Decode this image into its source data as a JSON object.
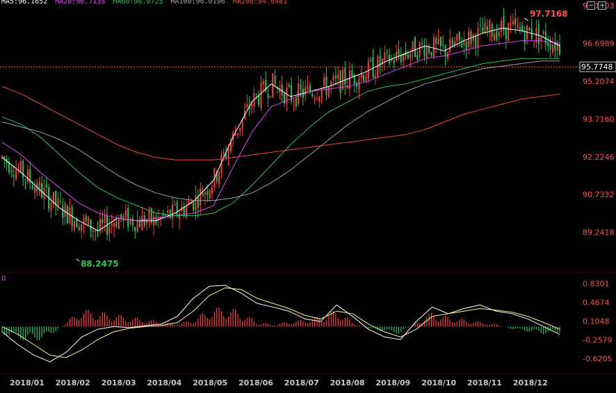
{
  "colors": {
    "bg": "#000000",
    "up": "#ff3b3b",
    "down": "#22c55e",
    "ma5": "#ffffff",
    "ma20": "#d946ef",
    "ma60": "#22c55e",
    "ma100": "#9ca3af",
    "ma200": "#ef4444",
    "axis_text": "#ff4d4d",
    "date_text": "#c9c9c9",
    "dif": "#ffffff",
    "dea": "#f5f5a0"
  },
  "legend": [
    {
      "text": "MA5:96.1652",
      "color": "#ffffff"
    },
    {
      "text": "MA20:96.7135",
      "color": "#d946ef"
    },
    {
      "text": "MA60:96.0725",
      "color": "#22c55e"
    },
    {
      "text": "MA100:96.0196",
      "color": "#9ca3af"
    },
    {
      "text": "MA200:94.6481",
      "color": "#ef4444"
    }
  ],
  "indicator_label": "0",
  "buttons": [
    {
      "name": "zoom-out-button",
      "icon": "minus-square-icon"
    },
    {
      "name": "zoom-in-button",
      "icon": "plus-square-icon"
    }
  ],
  "chart_data": [
    {
      "type": "candlestick",
      "y_ticks": [
        "98.1903",
        "96.6989",
        "95.2074",
        "93.7160",
        "92.2246",
        "90.7332",
        "89.2418"
      ],
      "ylim": [
        88.0,
        98.19
      ],
      "last_price": "95.7748",
      "high_annotation": "97.7168",
      "low_annotation": "88.2475",
      "x_ticks": [
        "2018/01",
        "2018/02",
        "2018/03",
        "2018/04",
        "2018/05",
        "2018/06",
        "2018/07",
        "2018/08",
        "2018/09",
        "2018/10",
        "2018/11",
        "2018/12"
      ],
      "series": [
        {
          "name": "MA5",
          "values": [
            92.2,
            91.6,
            90.9,
            90.2,
            89.7,
            89.3,
            89.8,
            89.7,
            89.7,
            90.0,
            90.5,
            91.3,
            93.0,
            94.4,
            95.1,
            94.6,
            94.8,
            95.0,
            95.3,
            95.6,
            96.0,
            96.3,
            96.6,
            96.4,
            96.8,
            97.1,
            97.3,
            97.2,
            97.0,
            96.6
          ]
        },
        {
          "name": "MA20",
          "values": [
            92.8,
            92.3,
            91.6,
            91.0,
            90.4,
            90.0,
            89.8,
            89.7,
            89.8,
            89.9,
            90.0,
            90.3,
            91.8,
            93.2,
            94.2,
            94.5,
            94.8,
            94.9,
            95.0,
            95.2,
            95.5,
            95.8,
            96.1,
            96.2,
            96.4,
            96.6,
            96.7,
            96.8,
            96.8,
            96.7
          ]
        },
        {
          "name": "MA60",
          "values": [
            93.8,
            93.5,
            93.0,
            92.3,
            91.6,
            91.0,
            90.6,
            90.3,
            90.0,
            89.9,
            89.9,
            90.0,
            90.4,
            91.1,
            91.9,
            92.7,
            93.4,
            94.0,
            94.4,
            94.8,
            95.0,
            95.1,
            95.3,
            95.5,
            95.7,
            95.9,
            96.0,
            96.1,
            96.1,
            96.1
          ]
        },
        {
          "name": "MA100",
          "values": [
            93.6,
            93.4,
            93.2,
            92.9,
            92.5,
            92.0,
            91.5,
            91.1,
            90.8,
            90.6,
            90.5,
            90.5,
            90.6,
            90.8,
            91.2,
            91.7,
            92.3,
            92.9,
            93.5,
            94.0,
            94.4,
            94.8,
            95.1,
            95.3,
            95.5,
            95.7,
            95.8,
            95.9,
            96.0,
            96.0
          ]
        },
        {
          "name": "MA200",
          "values": [
            95.0,
            94.7,
            94.3,
            93.9,
            93.5,
            93.1,
            92.7,
            92.4,
            92.2,
            92.1,
            92.1,
            92.1,
            92.2,
            92.3,
            92.4,
            92.5,
            92.6,
            92.7,
            92.8,
            92.9,
            93.0,
            93.1,
            93.3,
            93.6,
            93.9,
            94.1,
            94.3,
            94.5,
            94.6,
            94.7
          ]
        }
      ]
    },
    {
      "type": "macd",
      "y_ticks": [
        "0.8301",
        "0.4674",
        "0.1048",
        "-0.2579",
        "-0.6205"
      ],
      "ylim": [
        -0.8,
        1.0
      ],
      "bars": [
        -0.15,
        -0.25,
        -0.3,
        -0.2,
        0.1,
        0.35,
        0.3,
        0.25,
        0.2,
        0.15,
        0.1,
        0.05,
        0.15,
        0.35,
        0.4,
        0.3,
        0.1,
        0.05,
        0.1,
        0.15,
        0.2,
        0.35,
        0.1,
        -0.05,
        -0.1,
        -0.15,
        0.1,
        0.3,
        0.2,
        0.15,
        0.1,
        0.05,
        -0.05,
        -0.1,
        -0.15,
        -0.12
      ],
      "dif": [
        -0.1,
        -0.35,
        -0.55,
        -0.68,
        -0.5,
        -0.2,
        -0.05,
        0.0,
        -0.02,
        0.02,
        0.05,
        0.2,
        0.55,
        0.78,
        0.8,
        0.65,
        0.45,
        0.38,
        0.3,
        0.15,
        0.1,
        0.42,
        0.2,
        -0.05,
        -0.2,
        -0.25,
        0.1,
        0.38,
        0.25,
        0.35,
        0.42,
        0.3,
        0.25,
        0.15,
        0.0,
        -0.15
      ],
      "dea": [
        0.0,
        -0.15,
        -0.35,
        -0.55,
        -0.6,
        -0.45,
        -0.25,
        -0.1,
        -0.03,
        0.0,
        0.02,
        0.08,
        0.3,
        0.6,
        0.75,
        0.72,
        0.55,
        0.45,
        0.35,
        0.22,
        0.15,
        0.3,
        0.25,
        0.05,
        -0.1,
        -0.2,
        -0.05,
        0.2,
        0.25,
        0.3,
        0.35,
        0.32,
        0.28,
        0.2,
        0.08,
        -0.05
      ]
    }
  ]
}
